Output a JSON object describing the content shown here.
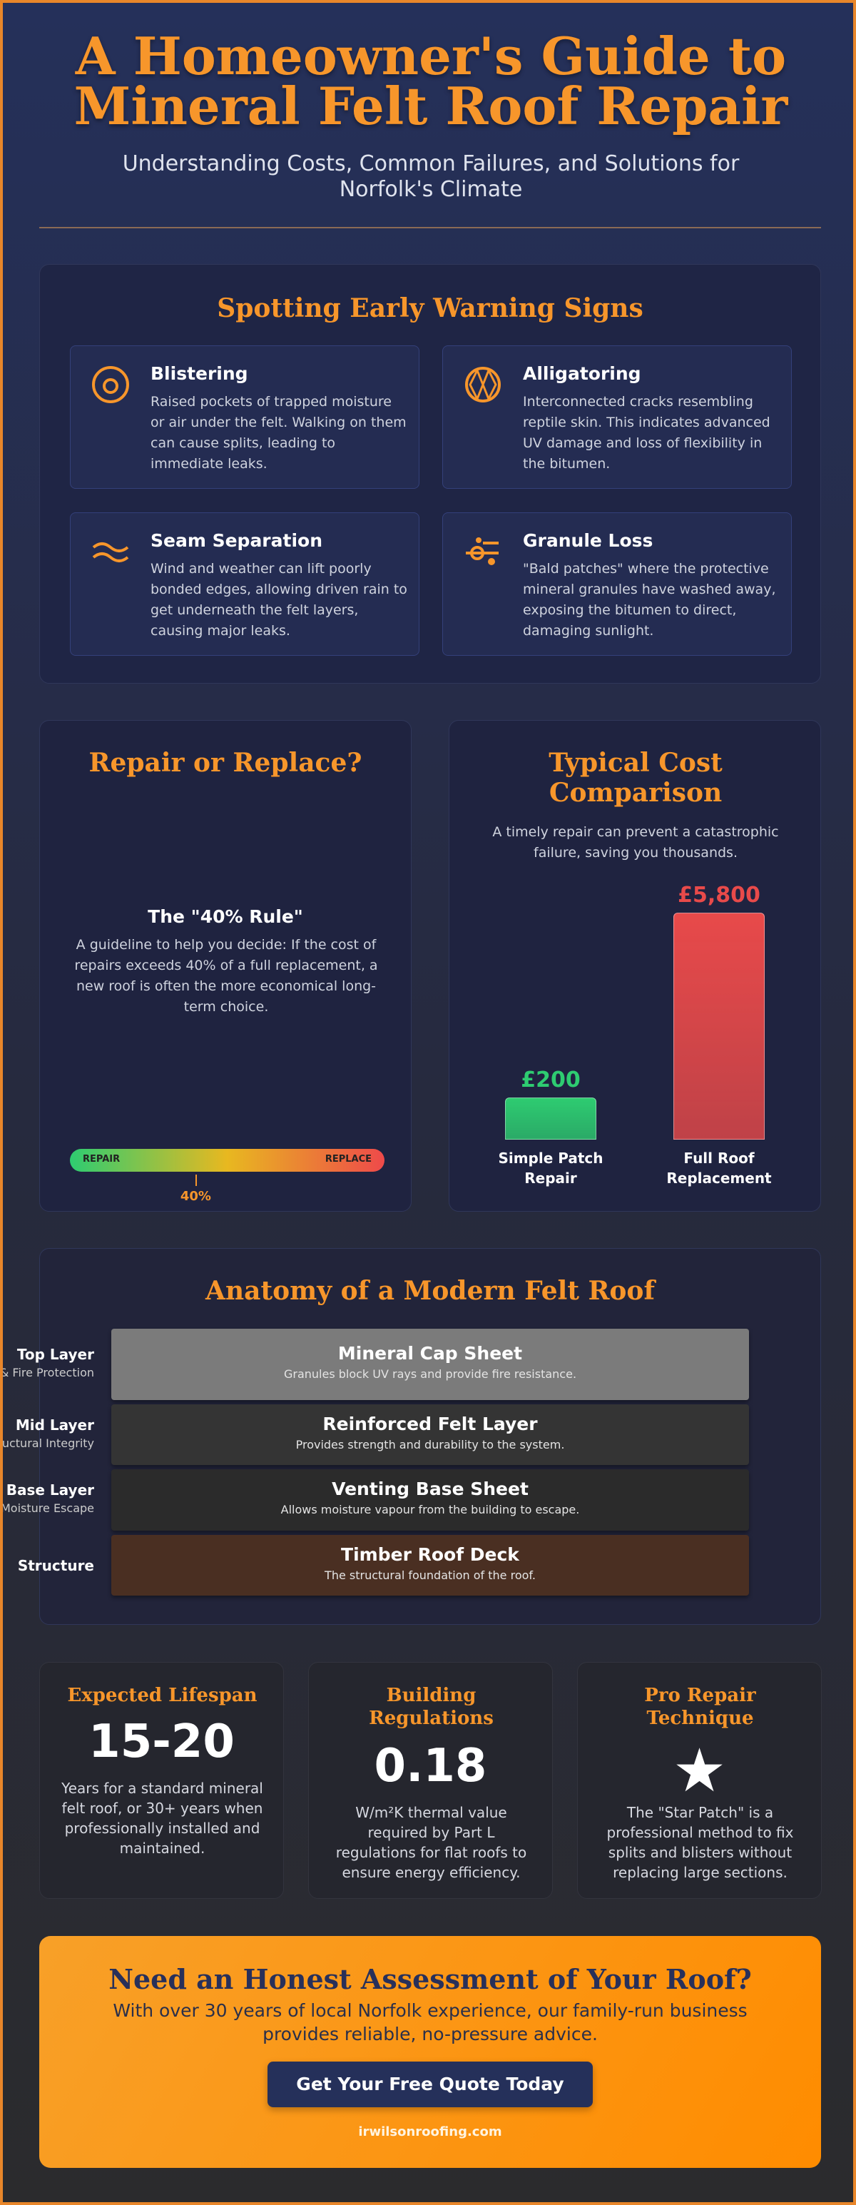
{
  "header": {
    "title": "A Homeowner's Guide to Mineral Felt Roof Repair",
    "subtitle": "Understanding Costs, Common Failures, and Solutions for Norfolk's Climate"
  },
  "warning_signs": {
    "title": "Spotting Early Warning Signs",
    "items": [
      {
        "title": "Blistering",
        "text": "Raised pockets of trapped moisture or air under the felt. Walking on them can cause splits, leading to immediate leaks."
      },
      {
        "title": "Alligatoring",
        "text": "Interconnected cracks resembling reptile skin. This indicates advanced UV damage and loss of flexibility in the bitumen."
      },
      {
        "title": "Seam Separation",
        "text": "Wind and weather can lift poorly bonded edges, allowing driven rain to get underneath the felt layers, causing major leaks."
      },
      {
        "title": "Granule Loss",
        "text": "\"Bald patches\" where the protective mineral granules have washed away, exposing the bitumen to direct, damaging sunlight."
      }
    ]
  },
  "repair_or_replace": {
    "title": "Repair or Replace?",
    "rule_title": "The \"40% Rule\"",
    "text": "A guideline to help you decide: If the cost of repairs exceeds 40% of a full replacement, a new roof is often the more economical long-term choice.",
    "scale_left": "REPAIR",
    "scale_right": "REPLACE",
    "marker": {
      "value": 40,
      "label": "40%"
    }
  },
  "cost_comparison": {
    "title": "Typical Cost Comparison",
    "text": "A timely repair can prevent a catastrophic failure, saving you thousands.",
    "bars": [
      {
        "label": "Simple Patch Repair",
        "value": 200,
        "value_label": "£200",
        "color": "#2ecc71"
      },
      {
        "label": "Full Roof Replacement",
        "value": 5800,
        "value_label": "£5,800",
        "color": "#e84a4a"
      }
    ]
  },
  "anatomy": {
    "title": "Anatomy of a Modern Felt Roof",
    "layers": [
      {
        "tag": "Top Layer",
        "role": "UV & Fire Protection",
        "name": "Mineral Cap Sheet",
        "text": "Granules block UV rays and provide fire resistance."
      },
      {
        "tag": "Mid Layer",
        "role": "Structural Integrity",
        "name": "Reinforced Felt Layer",
        "text": "Provides strength and durability to the system."
      },
      {
        "tag": "Base Layer",
        "role": "Moisture Escape",
        "name": "Venting Base Sheet",
        "text": "Allows moisture vapour from the building to escape."
      },
      {
        "tag": "Structure",
        "name": "Timber Roof Deck",
        "text": "The structural foundation of the roof."
      }
    ]
  },
  "stats": [
    {
      "title": "Expected Lifespan",
      "value": "15-20",
      "text": "Years for a standard mineral felt roof, or 30+ years when professionally installed and maintained."
    },
    {
      "title": "Building Regulations",
      "value": "0.18",
      "text": "W/m²K thermal value required by Part L regulations for flat roofs to ensure energy efficiency."
    },
    {
      "title": "Pro Repair Technique",
      "text": "The \"Star Patch\" is a professional method to fix splits and blisters without replacing large sections."
    }
  ],
  "cta": {
    "title": "Need an Honest Assessment of Your Roof?",
    "text": "With over 30 years of local Norfolk experience, our family-run business provides reliable, no-pressure advice.",
    "button": "Get Your Free Quote Today",
    "url": "irwilsonroofing.com"
  }
}
